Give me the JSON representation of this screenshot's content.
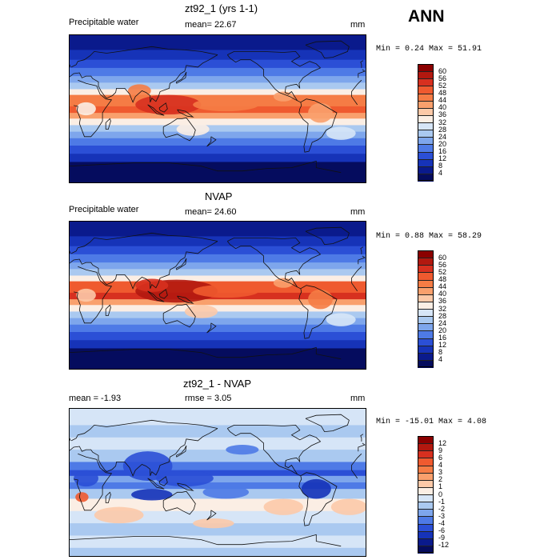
{
  "season": "ANN",
  "panels": [
    {
      "title": "zt92_1 (yrs 1-1)",
      "left_label": "Precipitable water",
      "center_label": "mean=  22.67",
      "units": "mm",
      "stats": "Min =   0.24  Max =  51.91",
      "colorbar": {
        "ticks": [
          "60",
          "56",
          "52",
          "48",
          "44",
          "40",
          "36",
          "32",
          "28",
          "24",
          "20",
          "16",
          "12",
          "8",
          "4"
        ],
        "colors": [
          "#8b0000",
          "#b2180f",
          "#d7301f",
          "#ef5a2f",
          "#f57c45",
          "#f9a06d",
          "#fcc9a8",
          "#fbeee4",
          "#d6e5f7",
          "#aac9f0",
          "#7ea6ec",
          "#4e7ae6",
          "#2b4fd6",
          "#1633b8",
          "#0a1a8c",
          "#050c5e"
        ]
      },
      "field": "model"
    },
    {
      "title": "NVAP",
      "left_label": "Precipitable water",
      "center_label": "mean=  24.60",
      "units": "mm",
      "stats": "Min =   0.88  Max =  58.29",
      "colorbar": {
        "ticks": [
          "60",
          "56",
          "52",
          "48",
          "44",
          "40",
          "36",
          "32",
          "28",
          "24",
          "20",
          "16",
          "12",
          "8",
          "4"
        ],
        "colors": [
          "#8b0000",
          "#b2180f",
          "#d7301f",
          "#ef5a2f",
          "#f57c45",
          "#f9a06d",
          "#fcc9a8",
          "#fbeee4",
          "#d6e5f7",
          "#aac9f0",
          "#7ea6ec",
          "#4e7ae6",
          "#2b4fd6",
          "#1633b8",
          "#0a1a8c",
          "#050c5e"
        ]
      },
      "field": "obs"
    },
    {
      "title": "zt92_1 - NVAP",
      "left_label": "mean =   -1.93",
      "center_label": "rmse =   3.05",
      "units": "mm",
      "stats": "Min = -15.01  Max =   4.08",
      "colorbar": {
        "ticks": [
          "12",
          "9",
          "6",
          "4",
          "3",
          "2",
          "1",
          "0",
          "-1",
          "-2",
          "-3",
          "-4",
          "-6",
          "-9",
          "-12"
        ],
        "colors": [
          "#8b0000",
          "#b2180f",
          "#d7301f",
          "#ef5a2f",
          "#f57c45",
          "#f9a06d",
          "#fcc9a8",
          "#fbeee4",
          "#d6e5f7",
          "#aac9f0",
          "#7ea6ec",
          "#4e7ae6",
          "#2b4fd6",
          "#1633b8",
          "#0a1a8c",
          "#050c5e"
        ]
      },
      "field": "diff"
    }
  ]
}
